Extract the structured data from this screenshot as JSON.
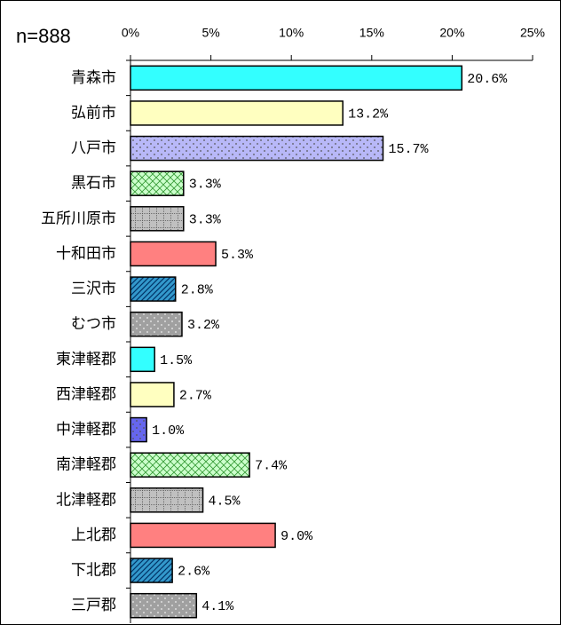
{
  "chart_data": {
    "type": "bar",
    "orientation": "horizontal",
    "annotation": "n=888",
    "categories": [
      "青森市",
      "弘前市",
      "八戸市",
      "黒石市",
      "五所川原市",
      "十和田市",
      "三沢市",
      "むつ市",
      "東津軽郡",
      "西津軽郡",
      "中津軽郡",
      "南津軽郡",
      "北津軽郡",
      "上北郡",
      "下北郡",
      "三戸郡"
    ],
    "values": [
      20.6,
      13.2,
      15.7,
      3.3,
      3.3,
      5.3,
      2.8,
      3.2,
      1.5,
      2.7,
      1.0,
      7.4,
      4.5,
      9.0,
      2.6,
      4.1
    ],
    "value_labels": [
      "20.6%",
      "13.2%",
      "15.7%",
      "3.3%",
      "3.3%",
      "5.3%",
      "2.8%",
      "3.2%",
      "1.5%",
      "2.7%",
      "1.0%",
      "7.4%",
      "4.5%",
      "9.0%",
      "2.6%",
      "4.1%"
    ],
    "colors": [
      "#33ffff",
      "#ffffc0",
      "#b8b8f8",
      "#ccffcc",
      "#c0c0c0",
      "#ff8080",
      "#3399cc",
      "#a0a0a0",
      "#33ffff",
      "#ffffc0",
      "#6666ee",
      "#ccffcc",
      "#c0c0c0",
      "#ff8080",
      "#3399cc",
      "#a0a0a0"
    ],
    "xlim": [
      0,
      25
    ],
    "xticks": [
      {
        "value": 0,
        "label": "0%"
      },
      {
        "value": 5,
        "label": "5%"
      },
      {
        "value": 10,
        "label": "10%"
      },
      {
        "value": 15,
        "label": "15%"
      },
      {
        "value": 20,
        "label": "20%"
      },
      {
        "value": 25,
        "label": "25%"
      }
    ]
  }
}
